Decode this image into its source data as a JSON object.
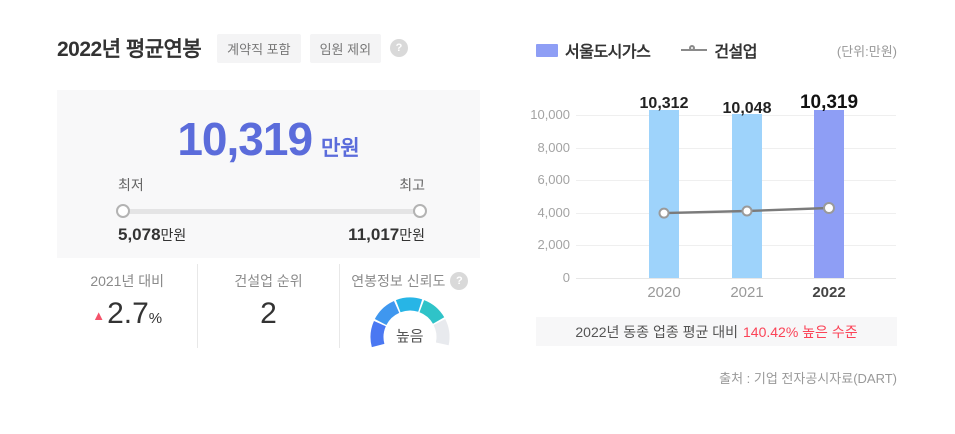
{
  "header": {
    "title": "2022년 평균연봉",
    "tags": [
      "계약직 포함",
      "임원 제외"
    ]
  },
  "icons": {
    "help": "?",
    "up_triangle": "▲"
  },
  "summary": {
    "value": "10,319",
    "unit": "만원",
    "min_label": "최저",
    "max_label": "최고",
    "min_value": "5,078",
    "min_unit": "만원",
    "max_value": "11,017",
    "max_unit": "만원"
  },
  "stats": [
    {
      "label": "2021년 대비",
      "value": "2.7",
      "suffix": "%",
      "direction": "up"
    },
    {
      "label": "건설업 순위",
      "value": "2"
    },
    {
      "label": "연봉정보 신뢰도",
      "gauge_label": "높음",
      "gauge_level": "4 of 5 segments filled"
    }
  ],
  "chart_data": {
    "type": "bar",
    "title": "",
    "unit_note": "(단위:만원)",
    "categories": [
      "2020",
      "2021",
      "2022"
    ],
    "series": [
      {
        "name": "서울도시가스",
        "type": "bar",
        "values": [
          10312,
          10048,
          10319
        ]
      },
      {
        "name": "건설업",
        "type": "line",
        "values": [
          3980,
          4110,
          4292
        ]
      }
    ],
    "bar_labels": [
      "10,312",
      "10,048",
      "10,319"
    ],
    "yticks": [
      "10,000",
      "8,000",
      "6,000",
      "4,000",
      "2,000",
      "0"
    ],
    "ylim": [
      0,
      10000
    ],
    "grid": true,
    "legend_position": "top",
    "highlight_category": "2022"
  },
  "footer": {
    "comparison_prefix": "2022년 동종 업종 평균 대비",
    "comparison_highlight": "140.42% 높은 수준",
    "source": "출처 : 기업 전자공시자료(DART)"
  },
  "colors": {
    "accent_blue": "#5b6cdb",
    "bar_blue": "#9ed3fb",
    "bar_active_blue": "#8e9ef5",
    "line_gray": "#7b7b7b",
    "highlight_red": "#fb4357",
    "positive_red": "#f4536a",
    "gauge_segments": [
      "#4a78f2",
      "#3f97ef",
      "#27b5e6",
      "#2fc3c8",
      "#e8eaee"
    ],
    "card_bg": "#f8f8f9",
    "banner_bg": "#f7f7f8"
  }
}
